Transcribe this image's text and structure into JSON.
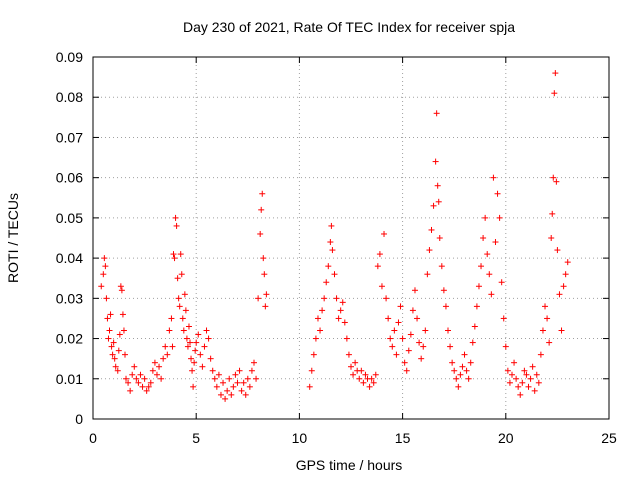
{
  "chart_data": {
    "type": "scatter",
    "title": "Day 230 of 2021, Rate Of TEC Index for receiver spja",
    "xlabel": "GPS time / hours",
    "ylabel": "ROTI / TECUs",
    "xlim": [
      0,
      25
    ],
    "ylim": [
      0,
      0.09
    ],
    "x_ticks": [
      "0",
      "5",
      "10",
      "15",
      "20",
      "25"
    ],
    "y_ticks": [
      "0",
      "0.01",
      "0.02",
      "0.03",
      "0.04",
      "0.05",
      "0.06",
      "0.07",
      "0.08",
      "0.09"
    ],
    "grid": true,
    "marker": "+",
    "color": "#ff0000",
    "series": [
      {
        "points": [
          [
            0.4,
            0.033
          ],
          [
            0.5,
            0.036
          ],
          [
            0.55,
            0.04
          ],
          [
            0.6,
            0.038
          ],
          [
            0.65,
            0.03
          ],
          [
            0.7,
            0.025
          ],
          [
            0.75,
            0.02
          ],
          [
            0.8,
            0.022
          ],
          [
            0.85,
            0.026
          ],
          [
            0.9,
            0.018
          ],
          [
            0.95,
            0.016
          ],
          [
            1.0,
            0.019
          ],
          [
            1.05,
            0.015
          ],
          [
            1.1,
            0.013
          ],
          [
            1.2,
            0.012
          ],
          [
            1.25,
            0.017
          ],
          [
            1.3,
            0.021
          ],
          [
            1.35,
            0.033
          ],
          [
            1.4,
            0.032
          ],
          [
            1.45,
            0.026
          ],
          [
            1.5,
            0.022
          ],
          [
            1.55,
            0.016
          ],
          [
            1.6,
            0.01
          ],
          [
            1.7,
            0.009
          ],
          [
            1.8,
            0.007
          ],
          [
            1.9,
            0.011
          ],
          [
            2.0,
            0.013
          ],
          [
            2.1,
            0.01
          ],
          [
            2.2,
            0.009
          ],
          [
            2.3,
            0.011
          ],
          [
            2.4,
            0.008
          ],
          [
            2.5,
            0.01
          ],
          [
            2.6,
            0.007
          ],
          [
            2.7,
            0.008
          ],
          [
            2.8,
            0.009
          ],
          [
            2.9,
            0.012
          ],
          [
            3.0,
            0.014
          ],
          [
            3.1,
            0.011
          ],
          [
            3.2,
            0.013
          ],
          [
            3.3,
            0.01
          ],
          [
            3.4,
            0.015
          ],
          [
            3.5,
            0.018
          ],
          [
            3.6,
            0.016
          ],
          [
            3.7,
            0.022
          ],
          [
            3.8,
            0.025
          ],
          [
            3.85,
            0.018
          ],
          [
            3.9,
            0.041
          ],
          [
            3.95,
            0.04
          ],
          [
            4.0,
            0.05
          ],
          [
            4.05,
            0.048
          ],
          [
            4.1,
            0.035
          ],
          [
            4.15,
            0.03
          ],
          [
            4.2,
            0.028
          ],
          [
            4.25,
            0.041
          ],
          [
            4.3,
            0.036
          ],
          [
            4.35,
            0.025
          ],
          [
            4.4,
            0.022
          ],
          [
            4.45,
            0.031
          ],
          [
            4.5,
            0.027
          ],
          [
            4.55,
            0.02
          ],
          [
            4.6,
            0.018
          ],
          [
            4.65,
            0.023
          ],
          [
            4.7,
            0.019
          ],
          [
            4.75,
            0.015
          ],
          [
            4.8,
            0.012
          ],
          [
            4.85,
            0.008
          ],
          [
            4.9,
            0.014
          ],
          [
            4.95,
            0.017
          ],
          [
            5.0,
            0.019
          ],
          [
            5.1,
            0.021
          ],
          [
            5.2,
            0.016
          ],
          [
            5.3,
            0.013
          ],
          [
            5.4,
            0.018
          ],
          [
            5.5,
            0.022
          ],
          [
            5.6,
            0.02
          ],
          [
            5.7,
            0.015
          ],
          [
            5.8,
            0.012
          ],
          [
            5.9,
            0.01
          ],
          [
            6.0,
            0.008
          ],
          [
            6.1,
            0.011
          ],
          [
            6.2,
            0.006
          ],
          [
            6.3,
            0.009
          ],
          [
            6.4,
            0.005
          ],
          [
            6.5,
            0.007
          ],
          [
            6.6,
            0.01
          ],
          [
            6.7,
            0.006
          ],
          [
            6.8,
            0.008
          ],
          [
            6.9,
            0.011
          ],
          [
            7.0,
            0.009
          ],
          [
            7.1,
            0.012
          ],
          [
            7.2,
            0.007
          ],
          [
            7.3,
            0.009
          ],
          [
            7.4,
            0.006
          ],
          [
            7.5,
            0.01
          ],
          [
            7.6,
            0.008
          ],
          [
            7.7,
            0.012
          ],
          [
            7.8,
            0.014
          ],
          [
            7.9,
            0.01
          ],
          [
            8.0,
            0.03
          ],
          [
            8.1,
            0.046
          ],
          [
            8.15,
            0.052
          ],
          [
            8.2,
            0.056
          ],
          [
            8.25,
            0.04
          ],
          [
            8.3,
            0.036
          ],
          [
            8.35,
            0.028
          ],
          [
            8.4,
            0.031
          ],
          [
            10.5,
            0.008
          ],
          [
            10.6,
            0.012
          ],
          [
            10.7,
            0.016
          ],
          [
            10.8,
            0.02
          ],
          [
            10.9,
            0.025
          ],
          [
            11.0,
            0.022
          ],
          [
            11.1,
            0.027
          ],
          [
            11.2,
            0.03
          ],
          [
            11.3,
            0.034
          ],
          [
            11.4,
            0.038
          ],
          [
            11.5,
            0.044
          ],
          [
            11.55,
            0.048
          ],
          [
            11.6,
            0.042
          ],
          [
            11.7,
            0.036
          ],
          [
            11.8,
            0.03
          ],
          [
            11.9,
            0.025
          ],
          [
            12.0,
            0.027
          ],
          [
            12.1,
            0.029
          ],
          [
            12.2,
            0.024
          ],
          [
            12.3,
            0.02
          ],
          [
            12.4,
            0.016
          ],
          [
            12.5,
            0.013
          ],
          [
            12.6,
            0.011
          ],
          [
            12.7,
            0.014
          ],
          [
            12.8,
            0.012
          ],
          [
            12.9,
            0.01
          ],
          [
            13.0,
            0.012
          ],
          [
            13.1,
            0.009
          ],
          [
            13.2,
            0.011
          ],
          [
            13.3,
            0.01
          ],
          [
            13.4,
            0.008
          ],
          [
            13.5,
            0.01
          ],
          [
            13.6,
            0.009
          ],
          [
            13.7,
            0.011
          ],
          [
            13.8,
            0.038
          ],
          [
            13.9,
            0.041
          ],
          [
            14.0,
            0.033
          ],
          [
            14.1,
            0.046
          ],
          [
            14.2,
            0.03
          ],
          [
            14.3,
            0.025
          ],
          [
            14.4,
            0.02
          ],
          [
            14.5,
            0.018
          ],
          [
            14.6,
            0.022
          ],
          [
            14.7,
            0.016
          ],
          [
            14.8,
            0.024
          ],
          [
            14.9,
            0.028
          ],
          [
            15.0,
            0.02
          ],
          [
            15.1,
            0.014
          ],
          [
            15.2,
            0.012
          ],
          [
            15.3,
            0.017
          ],
          [
            15.4,
            0.021
          ],
          [
            15.5,
            0.027
          ],
          [
            15.6,
            0.032
          ],
          [
            15.7,
            0.025
          ],
          [
            15.8,
            0.019
          ],
          [
            15.9,
            0.015
          ],
          [
            16.0,
            0.018
          ],
          [
            16.1,
            0.022
          ],
          [
            16.2,
            0.036
          ],
          [
            16.3,
            0.042
          ],
          [
            16.4,
            0.047
          ],
          [
            16.5,
            0.053
          ],
          [
            16.6,
            0.064
          ],
          [
            16.65,
            0.076
          ],
          [
            16.7,
            0.058
          ],
          [
            16.75,
            0.054
          ],
          [
            16.8,
            0.045
          ],
          [
            16.9,
            0.038
          ],
          [
            17.0,
            0.032
          ],
          [
            17.1,
            0.028
          ],
          [
            17.2,
            0.022
          ],
          [
            17.3,
            0.018
          ],
          [
            17.4,
            0.014
          ],
          [
            17.5,
            0.012
          ],
          [
            17.6,
            0.01
          ],
          [
            17.7,
            0.008
          ],
          [
            17.8,
            0.011
          ],
          [
            17.9,
            0.013
          ],
          [
            18.0,
            0.016
          ],
          [
            18.1,
            0.012
          ],
          [
            18.2,
            0.01
          ],
          [
            18.3,
            0.014
          ],
          [
            18.4,
            0.019
          ],
          [
            18.5,
            0.023
          ],
          [
            18.6,
            0.028
          ],
          [
            18.7,
            0.033
          ],
          [
            18.8,
            0.038
          ],
          [
            18.9,
            0.045
          ],
          [
            19.0,
            0.05
          ],
          [
            19.1,
            0.041
          ],
          [
            19.2,
            0.036
          ],
          [
            19.3,
            0.031
          ],
          [
            19.4,
            0.06
          ],
          [
            19.5,
            0.044
          ],
          [
            19.6,
            0.056
          ],
          [
            19.7,
            0.05
          ],
          [
            19.8,
            0.034
          ],
          [
            19.9,
            0.025
          ],
          [
            20.0,
            0.018
          ],
          [
            20.1,
            0.012
          ],
          [
            20.2,
            0.009
          ],
          [
            20.3,
            0.011
          ],
          [
            20.4,
            0.014
          ],
          [
            20.5,
            0.01
          ],
          [
            20.6,
            0.008
          ],
          [
            20.7,
            0.006
          ],
          [
            20.8,
            0.009
          ],
          [
            20.9,
            0.012
          ],
          [
            21.0,
            0.011
          ],
          [
            21.1,
            0.008
          ],
          [
            21.2,
            0.01
          ],
          [
            21.3,
            0.013
          ],
          [
            21.4,
            0.007
          ],
          [
            21.5,
            0.011
          ],
          [
            21.6,
            0.009
          ],
          [
            21.7,
            0.016
          ],
          [
            21.8,
            0.022
          ],
          [
            21.9,
            0.028
          ],
          [
            22.0,
            0.025
          ],
          [
            22.1,
            0.019
          ],
          [
            22.2,
            0.045
          ],
          [
            22.25,
            0.051
          ],
          [
            22.3,
            0.06
          ],
          [
            22.35,
            0.081
          ],
          [
            22.4,
            0.086
          ],
          [
            22.45,
            0.059
          ],
          [
            22.5,
            0.042
          ],
          [
            22.6,
            0.031
          ],
          [
            22.7,
            0.022
          ],
          [
            22.8,
            0.033
          ],
          [
            22.9,
            0.036
          ],
          [
            23.0,
            0.039
          ]
        ]
      }
    ]
  }
}
